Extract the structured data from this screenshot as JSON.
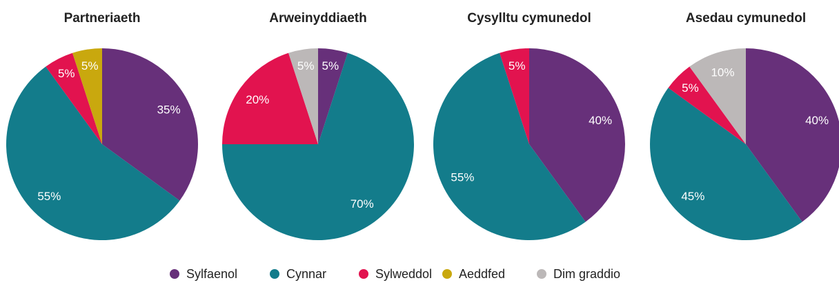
{
  "chart_data": [
    {
      "type": "pie",
      "title": "Partneriaeth",
      "values": [
        35,
        55,
        5,
        5
      ],
      "value_labels": [
        "35%",
        "55%",
        "5%",
        "5%"
      ],
      "colors": [
        "#67307a",
        "#137c8b",
        "#e2134f",
        "#c9a80e"
      ]
    },
    {
      "type": "pie",
      "title": "Arweinyddiaeth",
      "values": [
        5,
        70,
        20,
        5
      ],
      "value_labels": [
        "5%",
        "70%",
        "20%",
        "5%"
      ],
      "colors": [
        "#67307a",
        "#137c8b",
        "#e2134f",
        "#bcb8b8"
      ]
    },
    {
      "type": "pie",
      "title": "Cysylltu cymunedol",
      "values": [
        40,
        55,
        5
      ],
      "value_labels": [
        "40%",
        "55%",
        "5%"
      ],
      "colors": [
        "#67307a",
        "#137c8b",
        "#e2134f"
      ]
    },
    {
      "type": "pie",
      "title": "Asedau cymunedol",
      "values": [
        40,
        45,
        5,
        10
      ],
      "value_labels": [
        "40%",
        "45%",
        "5%",
        "10%"
      ],
      "colors": [
        "#67307a",
        "#137c8b",
        "#e2134f",
        "#bcb8b8"
      ]
    }
  ],
  "legend": {
    "names": [
      "Sylfaenol",
      "Cynnar",
      "Sylweddol",
      "Aeddfed",
      "Dim graddio"
    ],
    "colors": [
      "#67307a",
      "#137c8b",
      "#e2134f",
      "#c9a80e",
      "#bcb8b8"
    ]
  }
}
